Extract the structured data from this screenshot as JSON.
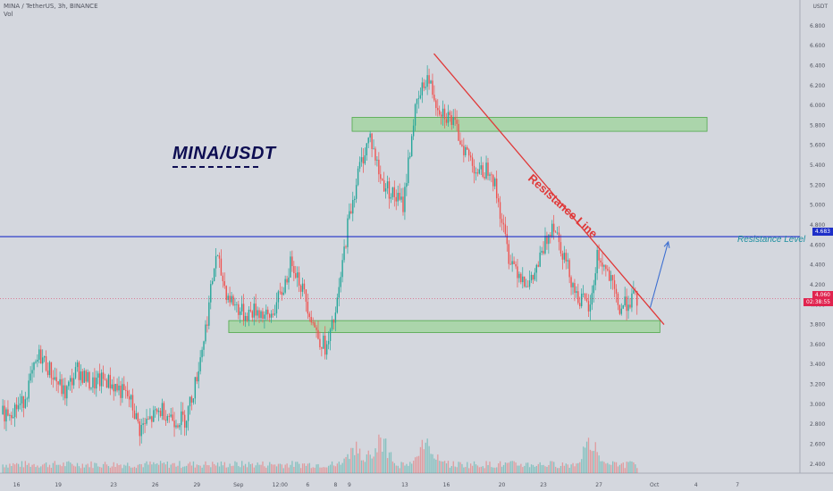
{
  "header": {
    "symbol_line": "MINA / TetherUS, 3h, BINANCE",
    "volume_label": "Vol"
  },
  "price_axis_unit": "USDT",
  "annotations": {
    "title": "MINA/USDT",
    "resistance_line_label": "Resistance Line",
    "resistance_level_label": "Resistance Level"
  },
  "price_tags": {
    "resistance_level": "4.683",
    "current_price": "4.060",
    "countdown": "02:38:55"
  },
  "colors": {
    "background": "#d4d7de",
    "bull": "#26a69a",
    "bear": "#ef5350",
    "resistance_level": "#1e2fc8",
    "resistance_line": "#e03838",
    "zone_fill": "#9dd49a",
    "current_price": "#e0244f",
    "arrow": "#3d6fd1"
  },
  "chart_data": {
    "type": "candlestick",
    "title": "MINA/USDT",
    "y_unit": "USDT",
    "ylim": [
      2.3,
      6.9
    ],
    "y_ticks": [
      2.4,
      2.6,
      2.8,
      3.0,
      3.2,
      3.4,
      3.6,
      3.8,
      4.0,
      4.2,
      4.4,
      4.6,
      4.8,
      5.0,
      5.2,
      5.4,
      5.6,
      5.8,
      6.0,
      6.2,
      6.4,
      6.6,
      6.8
    ],
    "y_tick_labels": [
      "2.400",
      "2.600",
      "2.800",
      "3.000",
      "3.200",
      "3.400",
      "3.600",
      "3.800",
      "4.000",
      "4.200",
      "4.400",
      "4.600",
      "4.800",
      "5.000",
      "5.200",
      "5.400",
      "5.600",
      "5.800",
      "6.000",
      "6.200",
      "6.400",
      "6.600",
      "6.800"
    ],
    "x_ticks": [
      {
        "label": "16",
        "day": 16
      },
      {
        "label": "19",
        "day": 19
      },
      {
        "label": "23",
        "day": 23
      },
      {
        "label": "26",
        "day": 26
      },
      {
        "label": "29",
        "day": 29
      },
      {
        "label": "Sep",
        "day": 32
      },
      {
        "label": "12:00",
        "day": 35
      },
      {
        "label": "6",
        "day": 37
      },
      {
        "label": "8",
        "day": 39
      },
      {
        "label": "9",
        "day": 40
      },
      {
        "label": "13",
        "day": 44
      },
      {
        "label": "16",
        "day": 47
      },
      {
        "label": "20",
        "day": 51
      },
      {
        "label": "23",
        "day": 54
      },
      {
        "label": "27",
        "day": 58
      },
      {
        "label": "Oct",
        "day": 62
      },
      {
        "label": "4",
        "day": 65
      },
      {
        "label": "7",
        "day": 68
      }
    ],
    "x_range_days": [
      14.8,
      72.5
    ],
    "price_path": [
      [
        15.0,
        2.9
      ],
      [
        16.5,
        3.0
      ],
      [
        17.8,
        3.5
      ],
      [
        18.7,
        3.3
      ],
      [
        19.6,
        3.1
      ],
      [
        20.5,
        3.35
      ],
      [
        21.5,
        3.2
      ],
      [
        22.5,
        3.25
      ],
      [
        23.5,
        3.15
      ],
      [
        24.3,
        3.05
      ],
      [
        25.0,
        2.75
      ],
      [
        25.8,
        2.85
      ],
      [
        26.6,
        2.95
      ],
      [
        27.5,
        2.85
      ],
      [
        28.3,
        2.85
      ],
      [
        29.0,
        3.2
      ],
      [
        29.8,
        3.8
      ],
      [
        30.5,
        4.5
      ],
      [
        31.3,
        4.1
      ],
      [
        32.5,
        3.9
      ],
      [
        33.5,
        3.95
      ],
      [
        34.3,
        3.85
      ],
      [
        35.2,
        4.1
      ],
      [
        36.0,
        4.45
      ],
      [
        37.0,
        4.05
      ],
      [
        37.8,
        3.7
      ],
      [
        38.5,
        3.55
      ],
      [
        39.2,
        3.95
      ],
      [
        40.0,
        4.8
      ],
      [
        40.8,
        5.35
      ],
      [
        41.6,
        5.7
      ],
      [
        42.4,
        5.25
      ],
      [
        43.3,
        5.1
      ],
      [
        44.0,
        5.0
      ],
      [
        44.8,
        5.9
      ],
      [
        45.7,
        6.3
      ],
      [
        46.5,
        6.0
      ],
      [
        47.5,
        5.85
      ],
      [
        48.5,
        5.55
      ],
      [
        49.5,
        5.3
      ],
      [
        50.3,
        5.4
      ],
      [
        50.9,
        5.0
      ],
      [
        51.6,
        4.5
      ],
      [
        52.5,
        4.3
      ],
      [
        53.2,
        4.2
      ],
      [
        54.0,
        4.5
      ],
      [
        54.8,
        4.85
      ],
      [
        55.7,
        4.45
      ],
      [
        56.5,
        4.1
      ],
      [
        57.5,
        3.95
      ],
      [
        58.0,
        4.5
      ],
      [
        58.8,
        4.3
      ],
      [
        59.6,
        3.95
      ],
      [
        60.3,
        4.05
      ],
      [
        60.8,
        4.06
      ]
    ],
    "volume_peaks": [
      {
        "day": 40.3,
        "value": 0.55
      },
      {
        "day": 42.2,
        "value": 0.75
      },
      {
        "day": 45.5,
        "value": 0.7
      },
      {
        "day": 57.4,
        "value": 0.6
      }
    ],
    "resistance_level": 4.683,
    "current_price": 4.06,
    "resistance_line": [
      [
        46.1,
        6.52
      ],
      [
        62.7,
        3.8
      ]
    ],
    "zones": [
      {
        "label": "supply",
        "x": [
          40.2,
          65.8
        ],
        "y": [
          5.74,
          5.88
        ]
      },
      {
        "label": "support",
        "x": [
          31.3,
          62.4
        ],
        "y": [
          3.72,
          3.84
        ]
      }
    ],
    "forecast_arrow": [
      [
        61.7,
        3.97
      ],
      [
        63.0,
        4.63
      ]
    ]
  }
}
